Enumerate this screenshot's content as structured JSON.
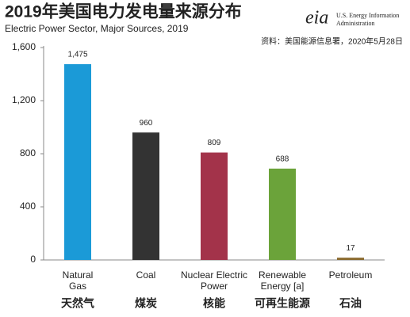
{
  "chart_data": {
    "type": "bar",
    "title": "2019年美国电力发电量来源分布",
    "subtitle": "Electric Power Sector, Major Sources, 2019",
    "source": "资料：美国能源信息署，2020年5月28日",
    "logo": {
      "mark": "eia",
      "line1": "U.S. Energy Information",
      "line2": "Administration"
    },
    "categories": [
      [
        "Natural",
        "Gas"
      ],
      [
        "Coal"
      ],
      [
        "Nuclear Electric",
        "Power"
      ],
      [
        "Renewable",
        "Energy [a]"
      ],
      [
        "Petroleum"
      ]
    ],
    "categories_cn": [
      "天然气",
      "煤炭",
      "核能",
      "可再生能源",
      "石油"
    ],
    "values": [
      1475,
      960,
      809,
      688,
      17
    ],
    "value_labels": [
      "1,475",
      "960",
      "809",
      "688",
      "17"
    ],
    "colors": [
      "#1b9ad7",
      "#333333",
      "#a3334a",
      "#6ba33a",
      "#8a6a2e"
    ],
    "ylim": [
      0,
      1600
    ],
    "yticks": [
      0,
      400,
      800,
      {
        "value": 1200,
        "label": "1,200"
      },
      {
        "value": 1600,
        "label": "1,600"
      }
    ],
    "grid": false
  }
}
